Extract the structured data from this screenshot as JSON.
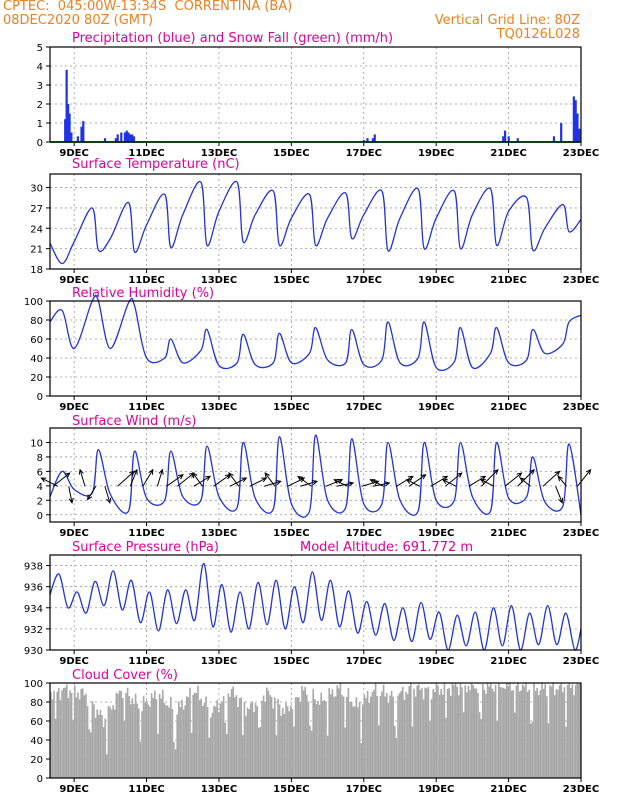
{
  "header": {
    "line1": "CPTEC:  045:00W-13:34S  CORRENTINA (BA)",
    "line2_left": "08DEC2020 80Z (GMT)",
    "line2_right": "Vertical Grid Line: 80Z",
    "line3_right": "TQ0126L028",
    "text_color": "#f07f1e"
  },
  "colors": {
    "title": "#e0009a",
    "line": "#2233dd",
    "precip": "#1f33e6",
    "snow": "#2aa02a",
    "cloud": "#a8a8a8",
    "arrow": "#000000"
  },
  "x_axis": {
    "start_day": 8.333,
    "end_day": 23.0,
    "ticks": [
      {
        "day": 9,
        "label": "9DEC"
      },
      {
        "day": 11,
        "label": "11DEC"
      },
      {
        "day": 13,
        "label": "13DEC"
      },
      {
        "day": 15,
        "label": "15DEC"
      },
      {
        "day": 17,
        "label": "17DEC"
      },
      {
        "day": 19,
        "label": "19DEC"
      },
      {
        "day": 21,
        "label": "21DEC"
      },
      {
        "day": 23,
        "label": "23DEC"
      }
    ]
  },
  "chart_data": [
    {
      "id": "precip",
      "type": "bar",
      "title": "Precipitation (blue) and Snow Fall (green) (mm/h)",
      "ylim": [
        0,
        5
      ],
      "yticks": [
        0,
        1,
        2,
        3,
        4,
        5
      ],
      "x": [
        8.75,
        8.79,
        8.83,
        8.87,
        8.92,
        9.1,
        9.2,
        9.25,
        9.85,
        10.15,
        10.2,
        10.3,
        10.4,
        10.45,
        10.5,
        10.55,
        10.6,
        10.65,
        17.0,
        17.1,
        17.25,
        17.3,
        20.85,
        20.9,
        21.0,
        21.25,
        22.25,
        22.45,
        22.8,
        22.85,
        22.9,
        22.95
      ],
      "values": [
        1.2,
        3.8,
        2.0,
        1.5,
        0.5,
        0.3,
        0.8,
        1.1,
        0.2,
        0.2,
        0.4,
        0.5,
        0.5,
        0.6,
        0.5,
        0.4,
        0.4,
        0.3,
        0.1,
        0.2,
        0.2,
        0.4,
        0.3,
        0.6,
        0.3,
        0.2,
        0.3,
        1.0,
        2.4,
        2.2,
        1.5,
        0.7
      ],
      "snow": 0.0
    },
    {
      "id": "temp",
      "type": "line",
      "title": "Surface Temperature (nC)",
      "ylim": [
        18,
        32
      ],
      "yticks": [
        18,
        21,
        24,
        27,
        30
      ],
      "diurnal_x": [
        8.67,
        9.0,
        9.5,
        9.67,
        10.0,
        10.5,
        10.67,
        11.0,
        11.5,
        11.67,
        12.0,
        12.5,
        12.67,
        13.0,
        13.5,
        13.67,
        14.0,
        14.5,
        14.67,
        15.0,
        15.5,
        15.67,
        16.0,
        16.5,
        16.67,
        17.0,
        17.5,
        17.67,
        18.0,
        18.5,
        18.67,
        19.0,
        19.5,
        19.67,
        20.0,
        20.5,
        20.67,
        21.0,
        21.5,
        21.67,
        22.0,
        22.5,
        22.67,
        23.0
      ],
      "diurnal_y": [
        18.8,
        22.0,
        27.0,
        20.8,
        22.5,
        27.8,
        20.5,
        24.5,
        29.0,
        21.2,
        26.0,
        30.8,
        21.5,
        26.5,
        30.8,
        22.0,
        26.0,
        29.5,
        21.5,
        25.5,
        29.0,
        21.5,
        25.5,
        29.2,
        22.5,
        26.0,
        29.5,
        20.7,
        25.5,
        29.8,
        21.0,
        25.5,
        29.5,
        21.0,
        26.0,
        29.8,
        21.5,
        26.5,
        28.5,
        20.8,
        24.0,
        27.5,
        23.5,
        25.3
      ],
      "start": [
        8.333,
        21.8
      ]
    },
    {
      "id": "rh",
      "type": "line",
      "title": "Relative Humidity (%)",
      "ylim": [
        0,
        100
      ],
      "yticks": [
        0,
        20,
        40,
        60,
        80,
        100
      ],
      "diurnal_x": [
        8.67,
        9.0,
        9.5,
        9.67,
        10.0,
        10.5,
        10.67,
        11.0,
        11.5,
        11.67,
        12.0,
        12.5,
        12.67,
        13.0,
        13.5,
        13.67,
        14.0,
        14.5,
        14.67,
        15.0,
        15.5,
        15.67,
        16.0,
        16.5,
        16.67,
        17.0,
        17.5,
        17.67,
        18.0,
        18.5,
        18.67,
        19.0,
        19.5,
        19.67,
        20.0,
        20.5,
        20.67,
        21.0,
        21.5,
        21.67,
        22.0,
        22.5,
        22.67,
        23.0
      ],
      "diurnal_y": [
        90,
        50,
        100,
        100,
        50,
        98,
        95,
        40,
        40,
        60,
        35,
        48,
        70,
        32,
        35,
        65,
        33,
        35,
        66,
        35,
        45,
        72,
        38,
        35,
        70,
        33,
        38,
        78,
        35,
        40,
        78,
        30,
        36,
        72,
        30,
        45,
        72,
        35,
        38,
        70,
        45,
        55,
        78,
        85
      ],
      "start": [
        8.333,
        78
      ]
    },
    {
      "id": "wind",
      "type": "line",
      "title": "Surface Wind (m/s)",
      "ylim": [
        -1,
        12
      ],
      "yticks": [
        0,
        2,
        4,
        6,
        8,
        10
      ],
      "diurnal_x": [
        8.67,
        9.0,
        9.5,
        9.67,
        10.0,
        10.5,
        10.67,
        11.0,
        11.5,
        11.67,
        12.0,
        12.5,
        12.67,
        13.0,
        13.5,
        13.67,
        14.0,
        14.5,
        14.67,
        15.0,
        15.5,
        15.67,
        16.0,
        16.5,
        16.67,
        17.0,
        17.5,
        17.67,
        18.0,
        18.5,
        18.67,
        19.0,
        19.5,
        19.67,
        20.0,
        20.5,
        20.67,
        21.0,
        21.5,
        21.67,
        22.0,
        22.5,
        22.67,
        23.0
      ],
      "diurnal_y": [
        6.0,
        3.5,
        3.0,
        9.0,
        2.8,
        0.5,
        8.8,
        2.3,
        2.0,
        8.8,
        2.5,
        2.0,
        9.5,
        2.5,
        1.0,
        10.0,
        2.3,
        0.8,
        10.8,
        1.5,
        0.5,
        11.0,
        2.0,
        1.0,
        10.5,
        1.5,
        1.5,
        10.0,
        2.0,
        0.5,
        10.0,
        2.0,
        2.0,
        10.0,
        2.5,
        0.5,
        10.0,
        2.3,
        2.5,
        8.0,
        1.8,
        1.2,
        9.8,
        0.0
      ],
      "start": [
        8.333,
        2.5
      ],
      "vectors": [
        {
          "day": 8.42,
          "dx": 1.0,
          "dy": 0.8
        },
        {
          "day": 8.55,
          "dx": -1.0,
          "dy": 0.5
        },
        {
          "day": 8.85,
          "dx": 0.2,
          "dy": -1.0
        },
        {
          "day": 9.3,
          "dx": -0.3,
          "dy": 1.0
        },
        {
          "day": 9.6,
          "dx": -0.5,
          "dy": -0.8
        },
        {
          "day": 9.85,
          "dx": 0.3,
          "dy": -1.0
        },
        {
          "day": 10.2,
          "dx": 1.0,
          "dy": 0.9
        },
        {
          "day": 10.55,
          "dx": 0.4,
          "dy": 1.0
        },
        {
          "day": 10.9,
          "dx": 0.6,
          "dy": 1.0
        },
        {
          "day": 11.3,
          "dx": 0.3,
          "dy": 1.0
        },
        {
          "day": 11.55,
          "dx": 1.0,
          "dy": 0.7
        },
        {
          "day": 11.85,
          "dx": 1.0,
          "dy": 0.8
        },
        {
          "day": 12.3,
          "dx": 1.0,
          "dy": 0.6
        },
        {
          "day": 12.55,
          "dx": -0.6,
          "dy": 0.8
        },
        {
          "day": 12.85,
          "dx": 1.0,
          "dy": 0.7
        },
        {
          "day": 13.3,
          "dx": 1.0,
          "dy": 0.5
        },
        {
          "day": 13.55,
          "dx": -0.6,
          "dy": 0.8
        },
        {
          "day": 13.85,
          "dx": 1.0,
          "dy": 0.5
        },
        {
          "day": 14.25,
          "dx": 1.0,
          "dy": 0.3
        },
        {
          "day": 14.55,
          "dx": -0.6,
          "dy": 0.8
        },
        {
          "day": 14.9,
          "dx": 1.0,
          "dy": 0.5
        },
        {
          "day": 15.25,
          "dx": 1.0,
          "dy": 0.3
        },
        {
          "day": 15.55,
          "dx": -0.8,
          "dy": 0.6
        },
        {
          "day": 15.95,
          "dx": 1.0,
          "dy": 0.4
        },
        {
          "day": 16.25,
          "dx": 1.0,
          "dy": 0.2
        },
        {
          "day": 16.55,
          "dx": -0.8,
          "dy": 0.4
        },
        {
          "day": 16.95,
          "dx": 1.0,
          "dy": 0.3
        },
        {
          "day": 17.25,
          "dx": 1.0,
          "dy": 0.2
        },
        {
          "day": 17.55,
          "dx": -0.8,
          "dy": 0.4
        },
        {
          "day": 17.9,
          "dx": 1.0,
          "dy": 0.6
        },
        {
          "day": 18.25,
          "dx": 1.0,
          "dy": 0.7
        },
        {
          "day": 18.55,
          "dx": -0.8,
          "dy": 0.4
        },
        {
          "day": 18.85,
          "dx": 1.0,
          "dy": 0.6
        },
        {
          "day": 19.25,
          "dx": 1.0,
          "dy": 0.8
        },
        {
          "day": 19.55,
          "dx": -0.8,
          "dy": 0.4
        },
        {
          "day": 19.9,
          "dx": 1.0,
          "dy": 0.6
        },
        {
          "day": 20.25,
          "dx": 1.0,
          "dy": 1.0
        },
        {
          "day": 20.6,
          "dx": -0.8,
          "dy": 0.4
        },
        {
          "day": 20.9,
          "dx": 1.0,
          "dy": 0.8
        },
        {
          "day": 21.25,
          "dx": 1.0,
          "dy": 1.0
        },
        {
          "day": 21.6,
          "dx": -0.6,
          "dy": 0.5
        },
        {
          "day": 21.95,
          "dx": 1.0,
          "dy": 0.9
        },
        {
          "day": 22.3,
          "dx": 0.4,
          "dy": -1.0
        },
        {
          "day": 22.6,
          "dx": -0.5,
          "dy": 0.6
        },
        {
          "day": 22.9,
          "dx": 0.8,
          "dy": 1.0
        }
      ]
    },
    {
      "id": "pres",
      "type": "line",
      "title": "Surface Pressure (hPa)",
      "subtitle": "Model Altitude: 691.772 m",
      "ylim": [
        930,
        939
      ],
      "yticks": [
        930,
        932,
        934,
        936,
        938
      ],
      "semidiurnal_x": [
        8.33,
        8.58,
        8.83,
        9.08,
        9.33,
        9.58,
        9.83,
        10.08,
        10.33,
        10.58,
        10.83,
        11.08,
        11.33,
        11.58,
        11.83,
        12.08,
        12.33,
        12.58,
        12.83,
        13.08,
        13.33,
        13.58,
        13.83,
        14.08,
        14.33,
        14.58,
        14.83,
        15.08,
        15.33,
        15.58,
        15.83,
        16.08,
        16.33,
        16.58,
        16.83,
        17.08,
        17.33,
        17.58,
        17.83,
        18.08,
        18.33,
        18.58,
        18.83,
        19.08,
        19.33,
        19.58,
        19.83,
        20.08,
        20.33,
        20.58,
        20.83,
        21.08,
        21.33,
        21.58,
        21.83,
        22.08,
        22.33,
        22.58,
        22.83,
        23.0
      ],
      "semidiurnal_y": [
        935.2,
        937.2,
        934.0,
        935.5,
        933.5,
        936.5,
        934.2,
        937.5,
        933.8,
        936.6,
        932.6,
        935.5,
        931.8,
        935.7,
        932.5,
        935.7,
        932.8,
        938.2,
        932.2,
        936.2,
        931.7,
        935.5,
        932.0,
        936.4,
        932.4,
        936.6,
        932.0,
        936.0,
        932.6,
        937.4,
        932.8,
        936.6,
        932.2,
        935.6,
        931.6,
        934.6,
        931.4,
        934.4,
        930.9,
        934.0,
        930.8,
        934.5,
        931.0,
        933.6,
        929.8,
        933.3,
        930.4,
        933.6,
        930.0,
        934.0,
        930.4,
        934.2,
        929.8,
        933.5,
        930.5,
        934.2,
        930.5,
        933.5,
        929.8,
        932.0
      ]
    },
    {
      "id": "cloud",
      "type": "bar",
      "title": "Cloud Cover (%)",
      "ylim": [
        0,
        100
      ],
      "yticks": [
        0,
        20,
        40,
        60,
        80,
        100
      ],
      "segments": [
        {
          "x": [
            8.333,
            8.8,
            9.3,
            9.8,
            10.3,
            10.8
          ],
          "y": [
            90,
            93,
            88,
            60,
            94,
            75
          ]
        },
        {
          "x": [
            10.8,
            11.3,
            11.8,
            12.3,
            12.8
          ],
          "y": [
            75,
            88,
            70,
            92,
            70
          ]
        },
        {
          "x": [
            12.8,
            13.3,
            13.8,
            14.3,
            14.8
          ],
          "y": [
            70,
            92,
            72,
            90,
            70
          ]
        },
        {
          "x": [
            14.8,
            15.3,
            15.8,
            16.3,
            16.8
          ],
          "y": [
            70,
            92,
            80,
            95,
            75
          ]
        },
        {
          "x": [
            16.8,
            17.3,
            17.8,
            18.3,
            18.8
          ],
          "y": [
            75,
            93,
            85,
            94,
            92
          ]
        },
        {
          "x": [
            18.8,
            19.3,
            19.8,
            20.3,
            20.8
          ],
          "y": [
            92,
            95,
            97,
            96,
            98
          ]
        },
        {
          "x": [
            20.8,
            21.3,
            21.8,
            22.3,
            23.0
          ],
          "y": [
            98,
            97,
            94,
            95,
            97
          ]
        }
      ]
    }
  ]
}
